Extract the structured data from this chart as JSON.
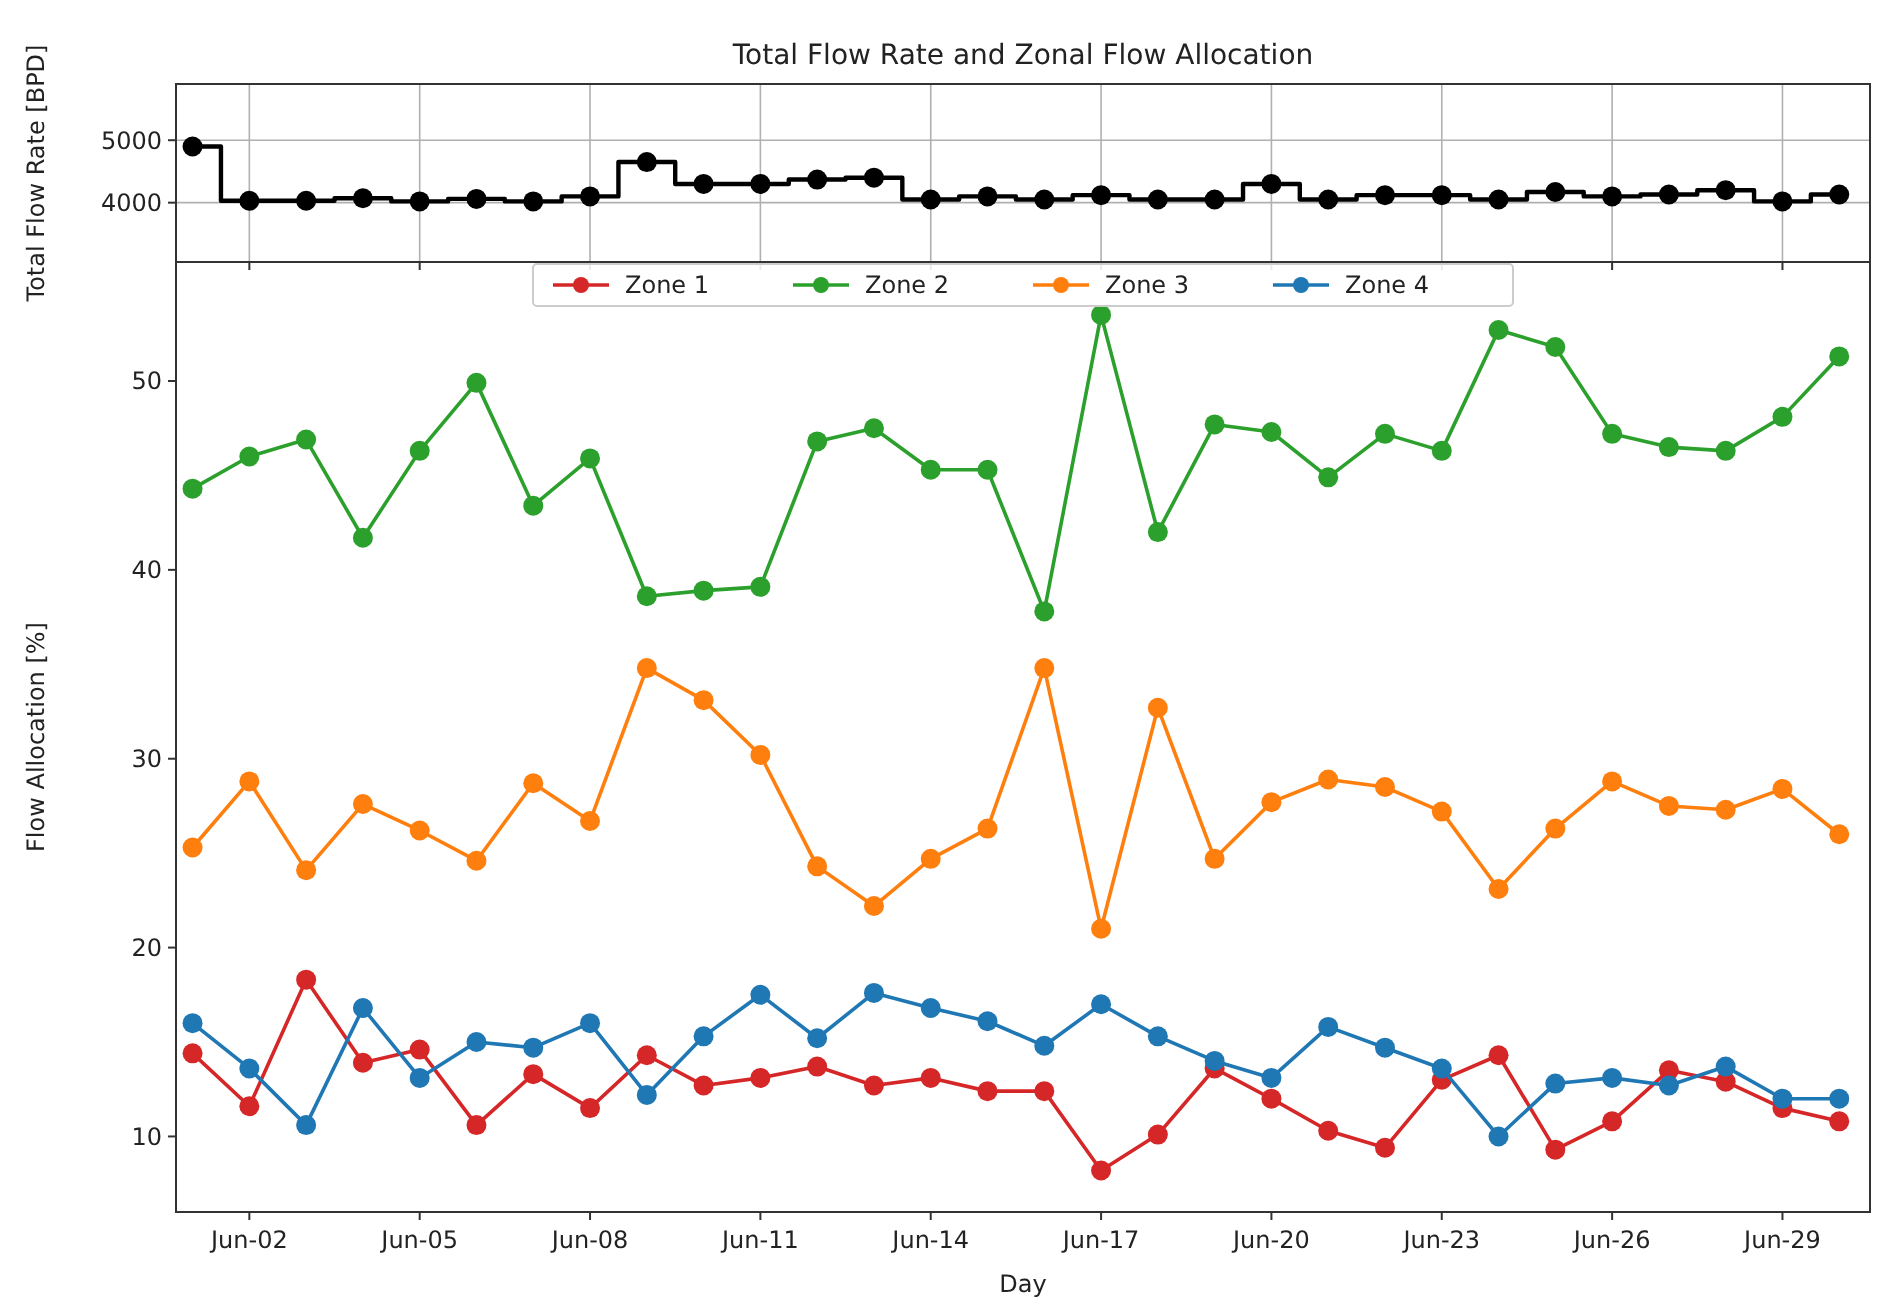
{
  "chart_data": [
    {
      "type": "step",
      "title": "Total Flow Rate and Zonal Flow Allocation",
      "ylabel": "Total Flow Rate [BPD]",
      "x": [
        "--06-01",
        "--06-02",
        "--06-03",
        "--06-04",
        "--06-05",
        "--06-06",
        "--06-07",
        "--06-08",
        "--06-09",
        "--06-10",
        "--06-11",
        "--06-12",
        "--06-13",
        "--06-14",
        "--06-15",
        "--06-16",
        "--06-17",
        "--06-18",
        "--06-19",
        "--06-20",
        "--06-21",
        "--06-22",
        "--06-23",
        "--06-24",
        "--06-25",
        "--06-26",
        "--06-27",
        "--06-28",
        "--06-29",
        "--06-30"
      ],
      "values": [
        4900,
        4030,
        4030,
        4070,
        4020,
        4060,
        4020,
        4100,
        4650,
        4300,
        4300,
        4370,
        4400,
        4050,
        4100,
        4050,
        4120,
        4050,
        4050,
        4300,
        4050,
        4120,
        4120,
        4050,
        4170,
        4100,
        4130,
        4200,
        4020,
        4130
      ],
      "color": "#000000",
      "marker": "circle",
      "xlim": [
        "--05-31T17:00",
        "--06-30T13:00"
      ],
      "ylim": [
        3050,
        5900
      ],
      "yticks": [
        4000,
        5000
      ],
      "grid": true,
      "tick_labels": "y",
      "xticks": [
        {
          "value": "--06-02",
          "label": null
        },
        {
          "value": "--06-05",
          "label": null
        },
        {
          "value": "--06-08",
          "label": null
        },
        {
          "value": "--06-11",
          "label": null
        },
        {
          "value": "--06-14",
          "label": null
        },
        {
          "value": "--06-17",
          "label": null
        },
        {
          "value": "--06-20",
          "label": null
        },
        {
          "value": "--06-23",
          "label": null
        },
        {
          "value": "--06-26",
          "label": null
        },
        {
          "value": "--06-29",
          "label": null
        }
      ]
    },
    {
      "type": "line",
      "xlabel": "Day",
      "ylabel": "Flow Allocation [%]",
      "marker": "circle",
      "legend": "top",
      "xlim": [
        "--05-31T17:00",
        "--06-30T13:00"
      ],
      "ylim": [
        6,
        56.3
      ],
      "yticks": [
        10,
        20,
        30,
        40,
        50
      ],
      "x": [
        "--06-01",
        "--06-02",
        "--06-03",
        "--06-04",
        "--06-05",
        "--06-06",
        "--06-07",
        "--06-08",
        "--06-09",
        "--06-10",
        "--06-11",
        "--06-12",
        "--06-13",
        "--06-14",
        "--06-15",
        "--06-16",
        "--06-17",
        "--06-18",
        "--06-19",
        "--06-20",
        "--06-21",
        "--06-22",
        "--06-23",
        "--06-24",
        "--06-25",
        "--06-26",
        "--06-27",
        "--06-28",
        "--06-29",
        "--06-30"
      ],
      "xticks": [
        {
          "value": "--06-02",
          "label": "Jun-02"
        },
        {
          "value": "--06-05",
          "label": "Jun-05"
        },
        {
          "value": "--06-08",
          "label": "Jun-08"
        },
        {
          "value": "--06-11",
          "label": "Jun-11"
        },
        {
          "value": "--06-14",
          "label": "Jun-14"
        },
        {
          "value": "--06-17",
          "label": "Jun-17"
        },
        {
          "value": "--06-20",
          "label": "Jun-20"
        },
        {
          "value": "--06-23",
          "label": "Jun-23"
        },
        {
          "value": "--06-26",
          "label": "Jun-26"
        },
        {
          "value": "--06-29",
          "label": "Jun-29"
        }
      ],
      "series": [
        {
          "name": "Zone 1",
          "color": "#d62728",
          "values": [
            14.4,
            11.6,
            18.3,
            13.9,
            14.6,
            10.6,
            13.3,
            11.5,
            14.3,
            12.7,
            13.1,
            13.7,
            12.7,
            13.1,
            12.4,
            12.4,
            8.2,
            10.1,
            13.6,
            12.0,
            10.3,
            9.4,
            13.0,
            14.3,
            9.3,
            10.8,
            13.5,
            12.9,
            11.5,
            10.8
          ]
        },
        {
          "name": "Zone 2",
          "color": "#2ca02c",
          "values": [
            44.3,
            46.0,
            46.9,
            41.7,
            46.3,
            49.9,
            43.4,
            45.9,
            38.6,
            38.9,
            39.1,
            46.8,
            47.5,
            45.3,
            45.3,
            37.8,
            53.5,
            42.0,
            47.7,
            47.3,
            44.9,
            47.2,
            46.3,
            52.7,
            51.8,
            47.2,
            46.5,
            46.3,
            48.1,
            51.3
          ]
        },
        {
          "name": "Zone 3",
          "color": "#ff7f0e",
          "values": [
            25.3,
            28.8,
            24.1,
            27.6,
            26.2,
            24.6,
            28.7,
            26.7,
            34.8,
            33.1,
            30.2,
            24.3,
            22.2,
            24.7,
            26.3,
            34.8,
            21.0,
            32.7,
            24.7,
            27.7,
            28.9,
            28.5,
            27.2,
            23.1,
            26.3,
            28.8,
            27.5,
            27.3,
            28.4,
            26.0
          ]
        },
        {
          "name": "Zone 4",
          "color": "#1f77b4",
          "values": [
            16.0,
            13.6,
            10.6,
            16.8,
            13.1,
            15.0,
            14.7,
            16.0,
            12.2,
            15.3,
            17.5,
            15.2,
            17.6,
            16.8,
            16.1,
            14.8,
            17.0,
            15.3,
            14.0,
            13.1,
            15.8,
            14.7,
            13.6,
            10.0,
            12.8,
            13.1,
            12.7,
            13.7,
            12.0,
            12.0
          ]
        }
      ]
    }
  ]
}
